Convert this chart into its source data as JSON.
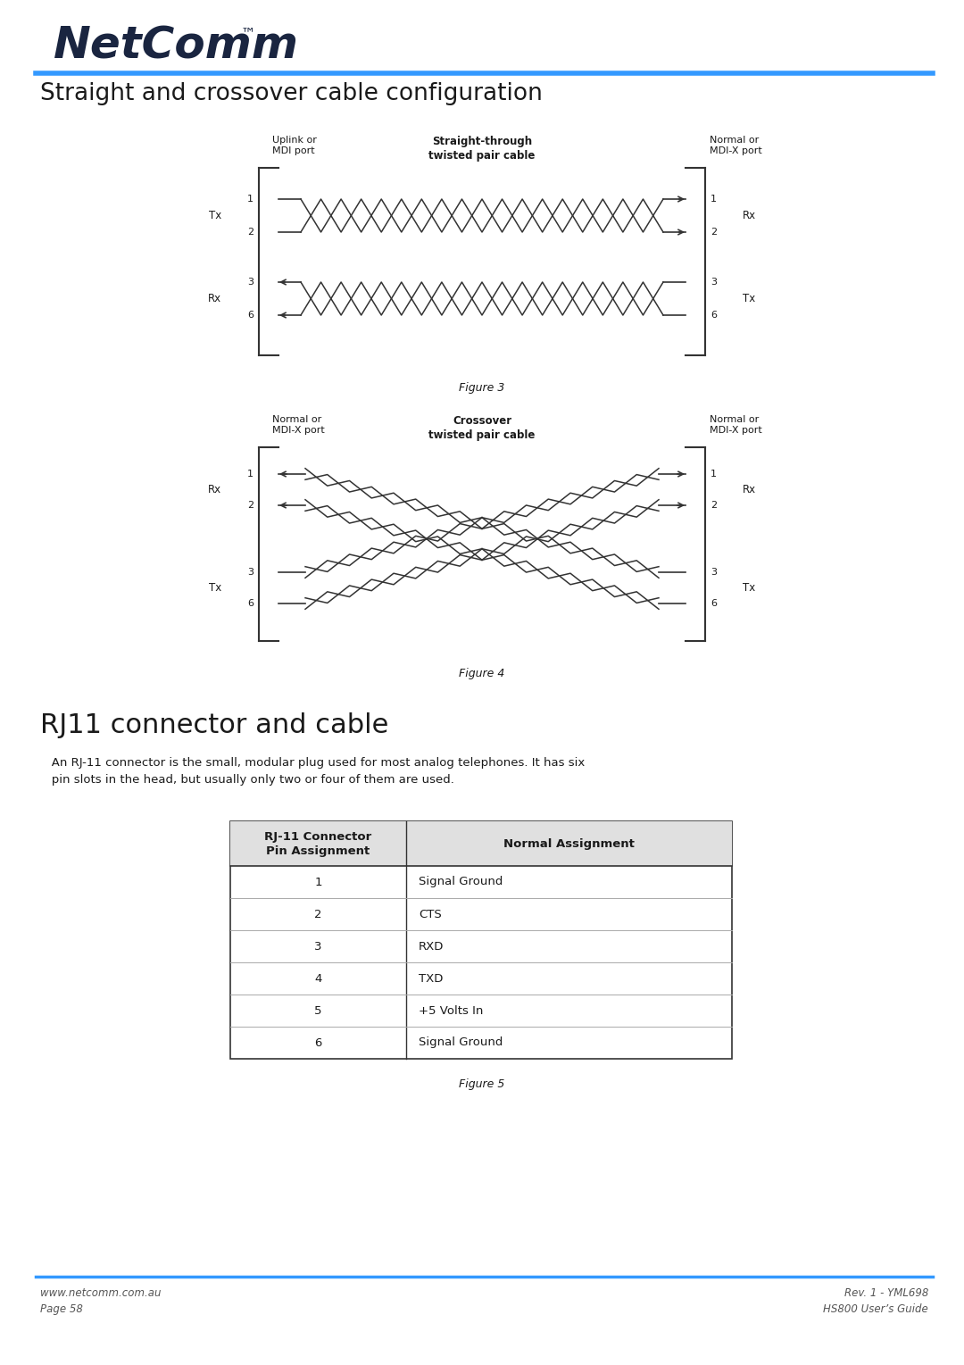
{
  "title": "Straight and crossover cable configuration",
  "blue_color": "#3399FF",
  "text_color": "#1a1a1a",
  "gray_text": "#555555",
  "fig_width": 10.8,
  "fig_height": 15.29,
  "footer_left1": "www.netcomm.com.au",
  "footer_left2": "Page 58",
  "footer_right1": "Rev. 1 - YML698",
  "footer_right2": "HS800 User’s Guide",
  "rj11_pins": [
    "1",
    "2",
    "3",
    "4",
    "5",
    "6"
  ],
  "rj11_assignments": [
    "Signal Ground",
    "CTS",
    "RXD",
    "TXD",
    "+5 Volts In",
    "Signal Ground"
  ],
  "rj11_section_title": "RJ11 connector and cable",
  "rj11_body": "   An RJ-11 connector is the small, modular plug used for most analog telephones. It has six\n   pin slots in the head, but usually only two or four of them are used.",
  "fig3_caption": "Figure 3",
  "fig4_caption": "Figure 4",
  "fig5_caption": "Figure 5"
}
